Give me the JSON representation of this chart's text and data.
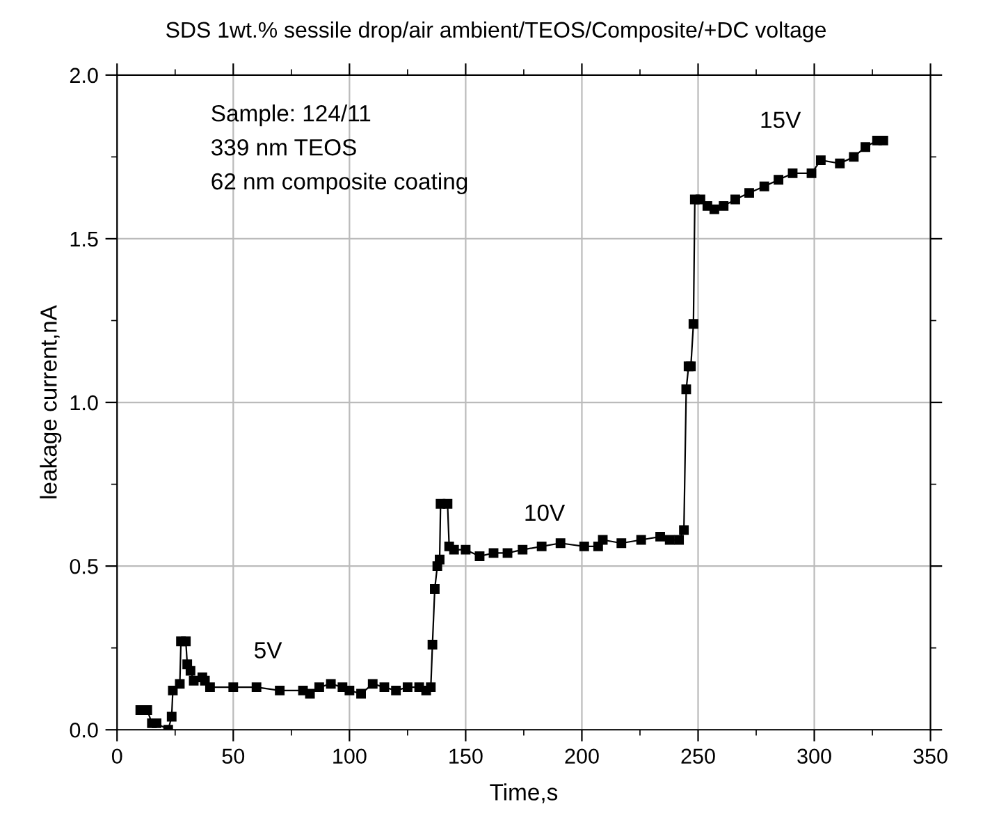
{
  "chart_data": {
    "type": "line",
    "title": "SDS 1wt.% sessile drop/air ambient/TEOS/Composite/+DC voltage",
    "xlabel": "Time,s",
    "ylabel": "leakage current,nA",
    "annotations": [
      "Sample: 124/11",
      "339 nm TEOS",
      "62 nm composite coating",
      "5V",
      "10V",
      "15V"
    ],
    "series": [
      {
        "color": "#000000",
        "x": [
          10,
          13,
          15,
          17,
          22,
          23.5,
          24,
          27,
          27.5,
          29.6,
          30.2,
          31.6,
          33,
          36.7,
          37.8,
          40,
          50,
          60,
          70,
          80,
          83,
          87,
          92,
          97,
          100,
          105,
          110,
          115,
          120,
          125,
          130,
          133,
          135,
          135.7,
          136.7,
          137.8,
          138.8,
          139.2,
          142.2,
          142.9,
          145,
          150,
          156,
          162,
          168,
          174.5,
          182.7,
          190.8,
          201,
          207,
          209,
          217,
          225.5,
          233.7,
          237.8,
          241.8,
          243.9,
          244.9,
          245.9,
          246.9,
          248,
          248.6,
          251,
          254,
          257,
          261,
          266,
          272,
          278.5,
          284.6,
          290.7,
          298.8,
          302.8,
          311,
          317,
          322,
          327,
          329.7
        ],
        "values": [
          0.06,
          0.06,
          0.02,
          0.02,
          0.0,
          0.04,
          0.12,
          0.14,
          0.27,
          0.27,
          0.2,
          0.18,
          0.15,
          0.16,
          0.15,
          0.13,
          0.13,
          0.13,
          0.12,
          0.12,
          0.11,
          0.13,
          0.14,
          0.13,
          0.12,
          0.11,
          0.14,
          0.13,
          0.12,
          0.13,
          0.13,
          0.12,
          0.13,
          0.26,
          0.43,
          0.5,
          0.52,
          0.69,
          0.69,
          0.56,
          0.55,
          0.55,
          0.53,
          0.54,
          0.54,
          0.55,
          0.56,
          0.57,
          0.56,
          0.56,
          0.58,
          0.57,
          0.58,
          0.59,
          0.58,
          0.58,
          0.61,
          1.04,
          1.11,
          1.11,
          1.24,
          1.62,
          1.62,
          1.6,
          1.59,
          1.6,
          1.62,
          1.64,
          1.66,
          1.68,
          1.7,
          1.7,
          1.74,
          1.73,
          1.75,
          1.78,
          1.8,
          1.8
        ]
      }
    ],
    "xlim": [
      0,
      350
    ],
    "xticks": [
      0,
      50,
      100,
      150,
      200,
      250,
      300,
      350
    ],
    "ylim": [
      0.0,
      2.0
    ],
    "yticks": [
      {
        "value": 0,
        "label": "0.0"
      },
      {
        "value": 0.5,
        "label": "0.5"
      },
      {
        "value": 1.0,
        "label": "1.0"
      },
      {
        "value": 1.5,
        "label": "1.5"
      },
      {
        "value": 2.0,
        "label": "2.0"
      }
    ],
    "grid": true,
    "marker": "square",
    "line_style": "solid",
    "legend": false
  }
}
